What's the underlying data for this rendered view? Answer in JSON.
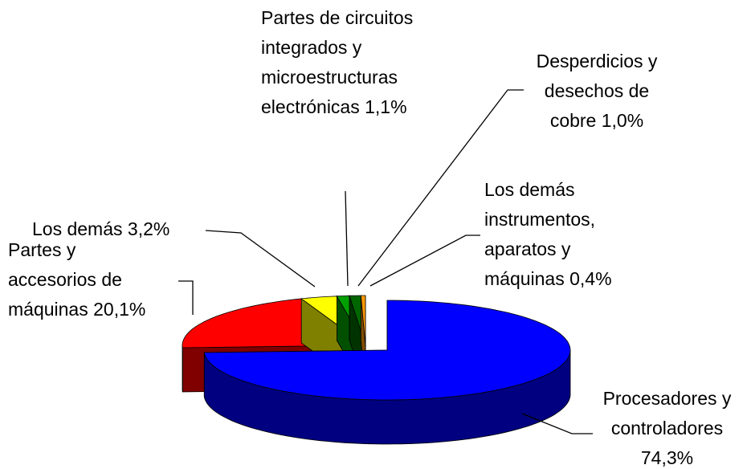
{
  "chart_data": {
    "type": "pie3d",
    "categories": [
      "Procesadores y controladores",
      "Partes y accesorios de máquinas",
      "Los demás",
      "Partes de circuitos integrados y microestructuras electrónicas",
      "Desperdicios y desechos de cobre",
      "Los demás instrumentos, aparatos y máquinas"
    ],
    "values": [
      74.3,
      20.1,
      3.2,
      1.1,
      1.0,
      0.4
    ],
    "value_labels": [
      "74,3%",
      "20,1%",
      "3,2%",
      "1,1%",
      "1,0%",
      "0,4%"
    ],
    "colors": [
      "#0000ff",
      "#ff0000",
      "#ffff00",
      "#00a000",
      "#006600",
      "#ff9900"
    ]
  }
}
